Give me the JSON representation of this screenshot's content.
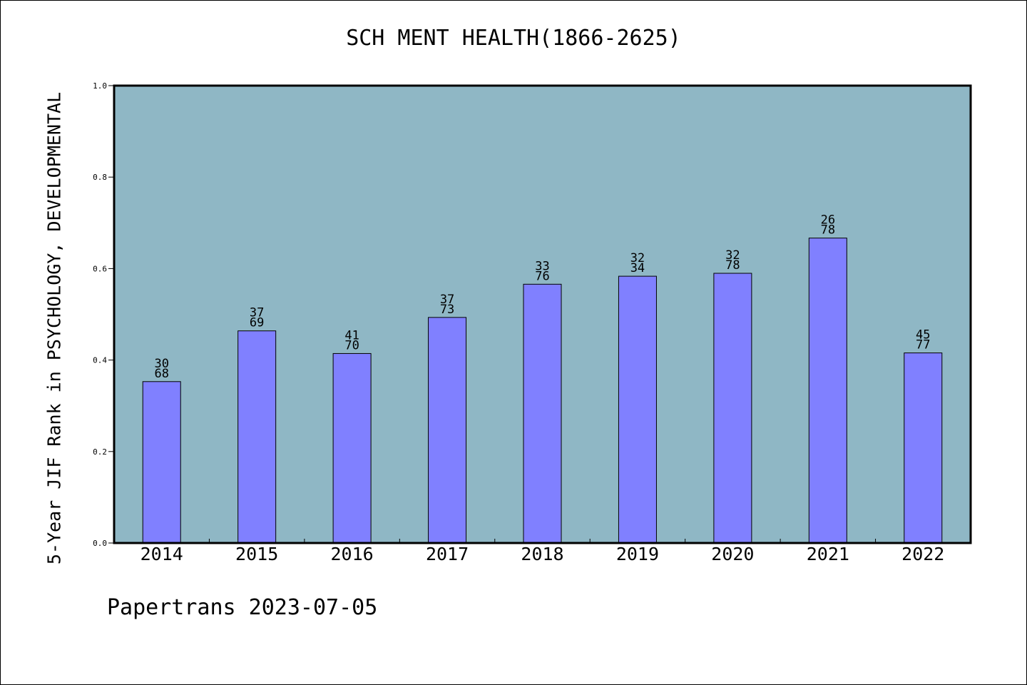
{
  "chart_data": {
    "type": "bar",
    "title": "SCH MENT HEALTH(1866-2625)",
    "ylabel": "5-Year JIF Rank in PSYCHOLOGY, DEVELOPMENTAL",
    "xlabel": "",
    "categories": [
      "2014",
      "2015",
      "2016",
      "2017",
      "2018",
      "2019",
      "2020",
      "2021",
      "2022"
    ],
    "values": [
      0.3529,
      0.4638,
      0.4143,
      0.4932,
      0.5658,
      0.5833,
      0.5897,
      0.6667,
      0.4156
    ],
    "bar_labels": [
      [
        "30",
        "68"
      ],
      [
        "37",
        "69"
      ],
      [
        "41",
        "70"
      ],
      [
        "37",
        "73"
      ],
      [
        "33",
        "76"
      ],
      [
        "32",
        "34"
      ],
      [
        "32",
        "78"
      ],
      [
        "26",
        "78"
      ],
      [
        "45",
        "77"
      ]
    ],
    "ylim": [
      0,
      1.0
    ],
    "yticks": [
      0.0,
      0.2,
      0.4,
      0.6,
      0.8,
      1.0
    ],
    "ytick_labels": [
      "0.0",
      "0.2",
      "0.4",
      "0.6",
      "0.8",
      "1.0"
    ],
    "grid": false,
    "colors": {
      "plot_bg": "#8fb7c5",
      "bar_fill": "#8080ff",
      "axis": "#000000"
    }
  },
  "footer": {
    "text": "Papertrans 2023-07-05"
  }
}
